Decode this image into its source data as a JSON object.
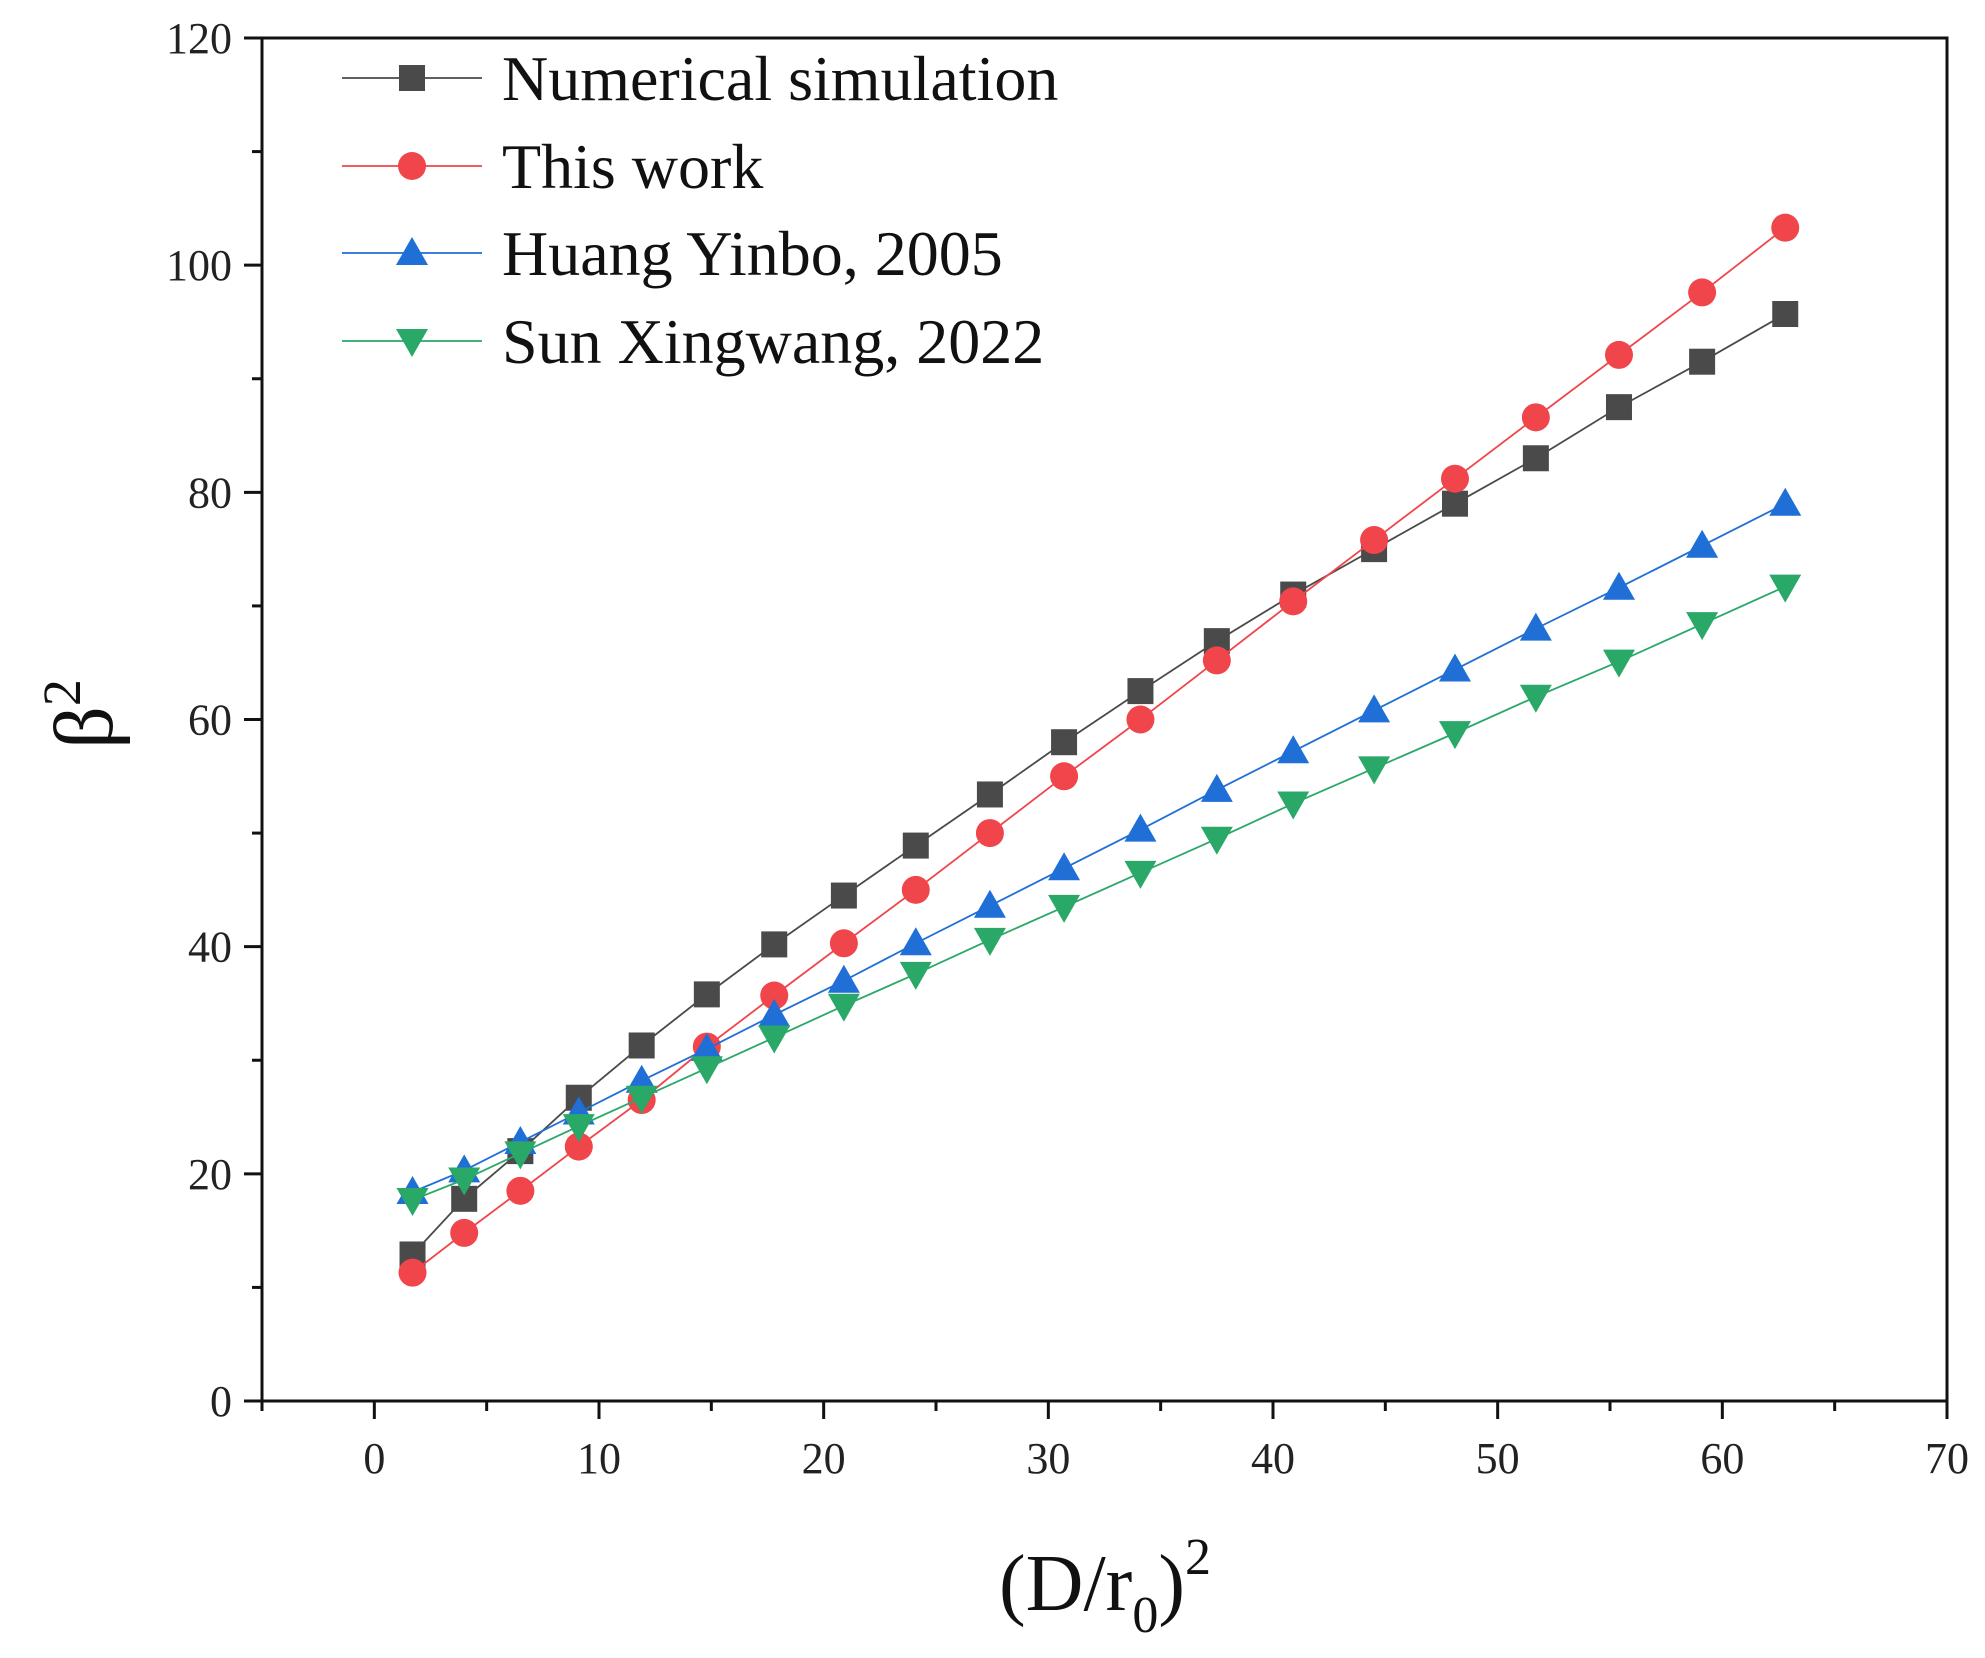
{
  "chart_data": {
    "type": "line",
    "title": "",
    "xlabel_base": "(D/r",
    "xlabel_sub": "0",
    "xlabel_close": ")",
    "xlabel_sup": "2",
    "ylabel_base": "β",
    "ylabel_sup": "2",
    "xlim": [
      -5,
      70
    ],
    "ylim": [
      0,
      120
    ],
    "xticks": [
      0,
      10,
      20,
      30,
      40,
      50,
      60,
      70
    ],
    "yticks": [
      0,
      20,
      40,
      60,
      80,
      100,
      120
    ],
    "x": [
      1.7,
      4.0,
      6.5,
      9.1,
      11.9,
      14.8,
      17.8,
      20.9,
      24.1,
      27.4,
      30.7,
      34.1,
      37.5,
      40.9,
      44.5,
      48.1,
      51.7,
      55.4,
      59.1,
      62.8
    ],
    "legend_position": "top-left",
    "series": [
      {
        "name": "Numerical simulation",
        "marker": "square",
        "color": "#4a4a4a",
        "values": [
          12.9,
          17.8,
          22.0,
          26.7,
          31.3,
          35.8,
          40.2,
          44.5,
          48.9,
          53.4,
          58.0,
          62.5,
          66.9,
          71.0,
          75.0,
          79.0,
          83.0,
          87.5,
          91.5,
          95.7
        ]
      },
      {
        "name": "This work",
        "marker": "circle",
        "color": "#f0454a",
        "values": [
          11.3,
          14.8,
          18.5,
          22.4,
          26.5,
          31.2,
          35.7,
          40.3,
          45.0,
          50.0,
          55.0,
          60.0,
          65.2,
          70.4,
          75.8,
          81.2,
          86.6,
          92.1,
          97.6,
          103.3
        ]
      },
      {
        "name": "Huang Yinbo, 2005",
        "marker": "triangle-up",
        "color": "#1f6fd6",
        "values": [
          18.4,
          20.3,
          22.8,
          25.4,
          28.2,
          31.0,
          34.0,
          37.0,
          40.3,
          43.6,
          46.9,
          50.3,
          53.8,
          57.2,
          60.8,
          64.4,
          68.0,
          71.6,
          75.3,
          79.0
        ]
      },
      {
        "name": "Sun Xingwang, 2022",
        "marker": "triangle-down",
        "color": "#2aa868",
        "values": [
          17.7,
          19.5,
          21.8,
          24.2,
          26.7,
          29.3,
          32.0,
          34.8,
          37.6,
          40.6,
          43.5,
          46.5,
          49.5,
          52.6,
          55.7,
          58.8,
          62.0,
          65.1,
          68.4,
          71.7
        ]
      }
    ]
  }
}
